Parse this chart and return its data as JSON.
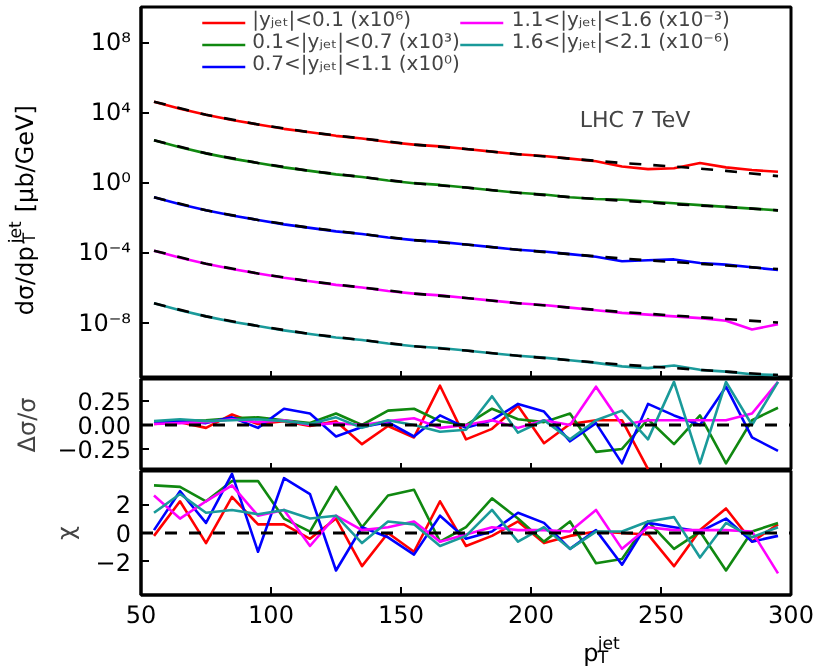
{
  "chart_data": [
    {
      "type": "line",
      "ylabel": "dσ/dp$_{T}$$^{jet}$ [μb/GeV]",
      "annotations": [
        "LHC 7 TeV"
      ],
      "log": "y",
      "grid": false,
      "legend": "top",
      "tick_labels": "y",
      "xlim": [
        50,
        300
      ],
      "xticks": [
        50,
        100,
        150,
        200,
        250,
        300
      ],
      "ylim": [
        6e-12,
        10000000000.0
      ],
      "yticks": [
        {
          "value": 1e-08,
          "label": "10⁻⁸"
        },
        {
          "value": 0.0001,
          "label": "10⁻⁴"
        },
        {
          "value": 1,
          "label": "10⁰"
        },
        {
          "value": 10000.0,
          "label": "10⁴"
        },
        {
          "value": 100000000.0,
          "label": "10⁸"
        }
      ],
      "x": [
        55,
        65,
        75,
        85,
        95,
        105,
        115,
        125,
        135,
        145,
        155,
        165,
        175,
        185,
        195,
        205,
        215,
        225,
        235,
        245,
        255,
        265,
        275,
        285,
        295
      ],
      "series": [
        {
          "name": "|yⱼₑₜ|<0.1 (x10⁶)",
          "color": "#ff0000",
          "values": [
            39800.0,
            15800.0,
            7080.0,
            3550.0,
            2000.0,
            1120.0,
            708,
            447,
            316,
            200,
            141,
            112,
            79.4,
            56.2,
            39.8,
            31.6,
            22.4,
            15.8,
            7.94,
            5.62,
            6.31,
            12.6,
            7.08,
            5.01,
            3.98
          ]
        },
        {
          "name": "0.1<|yⱼₑₜ|<0.7 (x10³)",
          "color": "#108810",
          "values": [
            251,
            100,
            44.7,
            22.4,
            12.6,
            7.08,
            4.47,
            2.82,
            2.0,
            1.26,
            0.891,
            0.708,
            0.501,
            0.355,
            0.251,
            0.2,
            0.141,
            0.112,
            0.1,
            0.0794,
            0.0631,
            0.0501,
            0.0398,
            0.0316,
            0.0251
          ]
        },
        {
          "name": "0.7<|yⱼₑₜ|<1.1 (x10⁰)",
          "color": "#0000ff",
          "values": [
            0.141,
            0.0562,
            0.0251,
            0.0126,
            0.00708,
            0.00398,
            0.00251,
            0.00158,
            0.00112,
            0.000708,
            0.000501,
            0.000398,
            0.000282,
            0.0002,
            0.000141,
            0.000112,
            7.94e-05,
            5.62e-05,
            3.16e-05,
            3.55e-05,
            3.98e-05,
            2.51e-05,
            2e-05,
            1.41e-05,
            1e-05
          ]
        },
        {
          "name": "1.1<|yⱼₑₜ|<1.6 (x10⁻³)",
          "color": "#ff00ff",
          "values": [
            0.000126,
            5.01e-05,
            2.24e-05,
            1.12e-05,
            6.31e-06,
            3.55e-06,
            2.24e-06,
            1.41e-06,
            1e-06,
            6.31e-07,
            4.47e-07,
            3.55e-07,
            2.51e-07,
            1.78e-07,
            1.26e-07,
            1e-07,
            7.08e-08,
            5.01e-08,
            3.55e-08,
            2.82e-08,
            2.24e-08,
            1.78e-08,
            1.26e-08,
            3.98e-09,
            7.94e-09
          ]
        },
        {
          "name": "1.6<|yⱼₑₜ|<2.1 (x10⁻⁶)",
          "color": "#1a9a9a",
          "values": [
            1.26e-07,
            5.01e-08,
            2.24e-08,
            1.12e-08,
            6.31e-09,
            3.55e-09,
            2.24e-09,
            1.41e-09,
            1e-09,
            6.31e-10,
            4.47e-10,
            3.55e-10,
            2.51e-10,
            1.78e-10,
            1.26e-10,
            1e-10,
            7.08e-11,
            5.01e-11,
            3.16e-11,
            2.51e-11,
            3.55e-11,
            2e-11,
            1.58e-11,
            1.12e-11,
            1e-11
          ]
        },
        {
          "color": "#000000",
          "line_style": "dashed",
          "x": [
            55,
            75,
            95,
            115,
            135,
            155,
            175,
            195,
            215,
            235,
            255,
            275,
            295
          ],
          "values": [
            39800.0,
            7080.0,
            2000.0,
            708,
            316,
            141,
            79.4,
            39.8,
            22.4,
            12.6,
            7.94,
            4.47,
            2.24
          ]
        },
        {
          "color": "#000000",
          "line_style": "dashed",
          "x": [
            55,
            75,
            95,
            115,
            135,
            155,
            175,
            195,
            215,
            235,
            255,
            275,
            295
          ],
          "values": [
            251,
            44.7,
            12.6,
            4.47,
            2.0,
            0.891,
            0.501,
            0.251,
            0.141,
            0.0891,
            0.0562,
            0.0398,
            0.0251
          ]
        },
        {
          "color": "#000000",
          "line_style": "dashed",
          "x": [
            55,
            75,
            95,
            115,
            135,
            155,
            175,
            195,
            215,
            235,
            255,
            275,
            295
          ],
          "values": [
            0.141,
            0.0251,
            0.00708,
            0.00251,
            0.00112,
            0.000501,
            0.000282,
            0.000141,
            7.94e-05,
            4.47e-05,
            2.82e-05,
            1.78e-05,
            1.12e-05
          ]
        },
        {
          "color": "#000000",
          "line_style": "dashed",
          "x": [
            55,
            75,
            95,
            115,
            135,
            155,
            175,
            195,
            215,
            235,
            255,
            275,
            295
          ],
          "values": [
            0.000126,
            2.24e-05,
            6.31e-06,
            2.24e-06,
            1e-06,
            4.47e-07,
            2.51e-07,
            1.26e-07,
            7.08e-08,
            3.98e-08,
            2.51e-08,
            1.58e-08,
            1e-08
          ]
        },
        {
          "color": "#000000",
          "line_style": "dashed",
          "x": [
            55,
            75,
            95,
            115,
            135,
            155,
            175,
            195,
            215,
            235,
            255,
            275,
            295
          ],
          "values": [
            1.26e-07,
            2.24e-08,
            6.31e-09,
            2.24e-09,
            1e-09,
            4.47e-10,
            2.51e-10,
            1.26e-10,
            7.08e-11,
            3.98e-11,
            2.51e-11,
            1.58e-11,
            1e-11
          ]
        }
      ]
    },
    {
      "type": "line",
      "ylabel": "Δσ/σ",
      "grid": false,
      "tick_labels": "y",
      "xlim": [
        50,
        300
      ],
      "xticks": [
        50,
        100,
        150,
        200,
        250,
        300
      ],
      "ylim": [
        -0.48,
        0.48
      ],
      "yticks": [
        {
          "value": -0.25,
          "label": "−0.25"
        },
        {
          "value": 0,
          "label": "0.00"
        },
        {
          "value": 0.25,
          "label": "0.25"
        }
      ],
      "ref_lines": [
        {
          "axis": "y",
          "value": 0,
          "color": "#000000",
          "line_style": "dashed"
        }
      ],
      "x": [
        55,
        65,
        75,
        85,
        95,
        105,
        115,
        125,
        135,
        145,
        155,
        165,
        175,
        185,
        195,
        205,
        215,
        225,
        235,
        245,
        255,
        265,
        275,
        285,
        295
      ],
      "series": [
        {
          "color": "#ff0000",
          "values": [
            0.01,
            0.03,
            -0.03,
            0.11,
            0.01,
            0.04,
            -0.01,
            0.04,
            -0.2,
            -0.01,
            -0.13,
            0.41,
            -0.15,
            -0.04,
            0.2,
            -0.19,
            0.01,
            0.05,
            0.05,
            -0.46,
            null,
            null,
            null,
            null,
            null
          ]
        },
        {
          "color": "#108810",
          "values": [
            0.03,
            0.04,
            0.05,
            0.07,
            0.08,
            0.05,
            0.02,
            0.12,
            0.0,
            0.15,
            0.17,
            0.04,
            0.0,
            0.17,
            0.06,
            0.03,
            0.12,
            -0.28,
            -0.25,
            0.06,
            -0.2,
            0.1,
            -0.4,
            0.05,
            0.18
          ]
        },
        {
          "color": "#0000ff",
          "values": [
            0.02,
            0.04,
            0.02,
            0.08,
            -0.03,
            0.17,
            0.12,
            -0.12,
            -0.02,
            0.03,
            -0.12,
            0.1,
            -0.03,
            0.05,
            0.22,
            0.14,
            -0.17,
            0.02,
            -0.4,
            0.22,
            0.1,
            0.0,
            0.4,
            -0.13,
            -0.27
          ]
        },
        {
          "color": "#ff00ff",
          "values": [
            0.01,
            0.02,
            0.03,
            0.06,
            0.03,
            0.05,
            0.0,
            0.02,
            0.0,
            0.04,
            0.07,
            -0.03,
            0.0,
            0.05,
            -0.03,
            0.05,
            0.0,
            0.4,
            0.0,
            0.05,
            0.05,
            0.05,
            0.05,
            0.12,
            0.45
          ]
        },
        {
          "color": "#1a9a9a",
          "values": [
            0.04,
            0.06,
            0.04,
            0.05,
            0.06,
            0.04,
            0.01,
            0.08,
            -0.03,
            0.05,
            0.0,
            -0.07,
            -0.05,
            0.3,
            -0.08,
            0.05,
            -0.15,
            0.05,
            0.15,
            -0.15,
            0.45,
            -0.4,
            0.45,
            0.0,
            0.45
          ]
        }
      ]
    },
    {
      "type": "line",
      "ylabel": "χ",
      "xlabel": "p$_{T}$$^{jet}$",
      "grid": false,
      "xlim": [
        50,
        300
      ],
      "xticks": [
        50,
        100,
        150,
        200,
        250,
        300
      ],
      "ylim": [
        -4.3,
        4.3
      ],
      "yticks": [
        {
          "value": -2,
          "label": "−2"
        },
        0,
        2
      ],
      "ref_lines": [
        {
          "axis": "y",
          "value": 0,
          "color": "#000000",
          "line_style": "dashed"
        }
      ],
      "x": [
        55,
        65,
        75,
        85,
        95,
        105,
        115,
        125,
        135,
        145,
        155,
        165,
        175,
        185,
        195,
        205,
        215,
        225,
        235,
        245,
        255,
        265,
        275,
        285,
        295
      ],
      "series": [
        {
          "color": "#ff0000",
          "values": [
            -0.2,
            2.2,
            -0.7,
            2.5,
            0.6,
            0.6,
            -0.4,
            1.0,
            -2.3,
            0,
            -1.3,
            2.2,
            -0.9,
            -0.2,
            0.8,
            -0.7,
            -0.2,
            0.1,
            0,
            -0.1,
            -2.3,
            0.2,
            1.7,
            -0.6,
            0.6
          ]
        },
        {
          "color": "#108810",
          "values": [
            3.3,
            3.2,
            2.2,
            3.6,
            3.6,
            1.0,
            0.1,
            3.2,
            0.4,
            2.6,
            3.0,
            -0.6,
            0.4,
            2.4,
            1.0,
            -0.6,
            0.8,
            -2.1,
            -1.8,
            0.8,
            -1.1,
            0.1,
            -2.6,
            0.1,
            0.7
          ]
        },
        {
          "color": "#0000ff",
          "values": [
            0.2,
            2.9,
            0.7,
            4.1,
            -1.3,
            3.8,
            2.7,
            -2.6,
            0.4,
            -0.3,
            -1.5,
            1.2,
            -0.4,
            0.1,
            1.4,
            0.7,
            -1.1,
            0.2,
            -2.2,
            0.7,
            0.4,
            0.1,
            1.0,
            -0.6,
            -0.2
          ]
        },
        {
          "color": "#ff00ff",
          "values": [
            2.6,
            1.0,
            2.2,
            3.3,
            1.2,
            1.6,
            -0.9,
            1.2,
            0.2,
            0.4,
            0.8,
            -0.6,
            -0.1,
            0.4,
            0.2,
            0.2,
            0.1,
            1.6,
            -1.1,
            0.4,
            0.2,
            0.2,
            0.2,
            0.1,
            -2.8
          ]
        },
        {
          "color": "#1a9a9a",
          "values": [
            1.4,
            2.7,
            1.4,
            1.6,
            1.3,
            1.6,
            1.0,
            1.2,
            -0.7,
            0.8,
            0.6,
            -0.9,
            -0.2,
            1.6,
            -0.6,
            0.4,
            -1.1,
            0.1,
            0.1,
            0.8,
            1.1,
            -1.7,
            0.7,
            -0.3,
            0.4
          ]
        }
      ]
    }
  ]
}
